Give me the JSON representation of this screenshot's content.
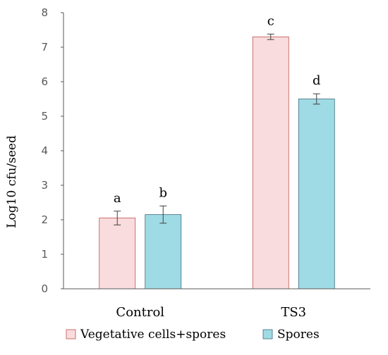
{
  "chart_data": {
    "type": "bar",
    "categories": [
      "Control",
      "TS3"
    ],
    "series": [
      {
        "name": "Vegetative cells+spores",
        "values": [
          2.05,
          7.3
        ],
        "errors": [
          0.2,
          0.08
        ],
        "labels": [
          "a",
          "c"
        ],
        "color": "#f9dcde",
        "stroke": "#c0504d"
      },
      {
        "name": "Spores",
        "values": [
          2.15,
          5.5
        ],
        "errors": [
          0.25,
          0.15
        ],
        "labels": [
          "b",
          "d"
        ],
        "color": "#9fdbe5",
        "stroke": "#3c6a7a"
      }
    ],
    "title": "",
    "xlabel": "",
    "ylabel": "Log10 cfu/seed",
    "ylim": [
      0,
      8
    ],
    "yticks": [
      0,
      1,
      2,
      3,
      4,
      5,
      6,
      7,
      8
    ],
    "grid": false,
    "legend_position": "bottom"
  }
}
